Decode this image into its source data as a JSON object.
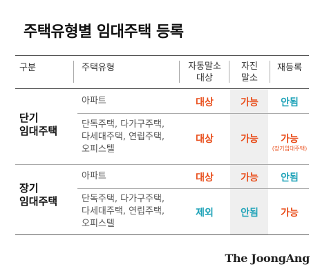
{
  "title": "주택유형별 임대주택 등록",
  "colors": {
    "orange": "#e94e1b",
    "teal": "#1fa3b8"
  },
  "header": {
    "col_category": "구분",
    "col_type": "주택유형",
    "col_auto_line1": "자동말소",
    "col_auto_line2": "대상",
    "col_vol_line1": "자진",
    "col_vol_line2": "말소",
    "col_rereg": "재등록"
  },
  "groups": [
    {
      "name_line1": "단기",
      "name_line2": "임대주택",
      "rows": [
        {
          "type_lines": [
            "아파트"
          ],
          "auto": "대상",
          "voluntary": "가능",
          "rereg": "안됨",
          "rereg_note": ""
        },
        {
          "type_lines": [
            "단독주택, 다가구주택,",
            "다세대주택, 연립주택,",
            "오피스텔"
          ],
          "auto": "대상",
          "voluntary": "가능",
          "rereg": "가능",
          "rereg_note": "(장기임대주택)"
        }
      ]
    },
    {
      "name_line1": "장기",
      "name_line2": "임대주택",
      "rows": [
        {
          "type_lines": [
            "아파트"
          ],
          "auto": "대상",
          "voluntary": "가능",
          "rereg": "안됨",
          "rereg_note": ""
        },
        {
          "type_lines": [
            "단독주택, 다가구주택,",
            "다세대주택, 연립주택,",
            "오피스텔"
          ],
          "auto": "제외",
          "voluntary": "안됨",
          "rereg": "가능",
          "rereg_note": ""
        }
      ]
    }
  ],
  "brand": "The JoongAng"
}
